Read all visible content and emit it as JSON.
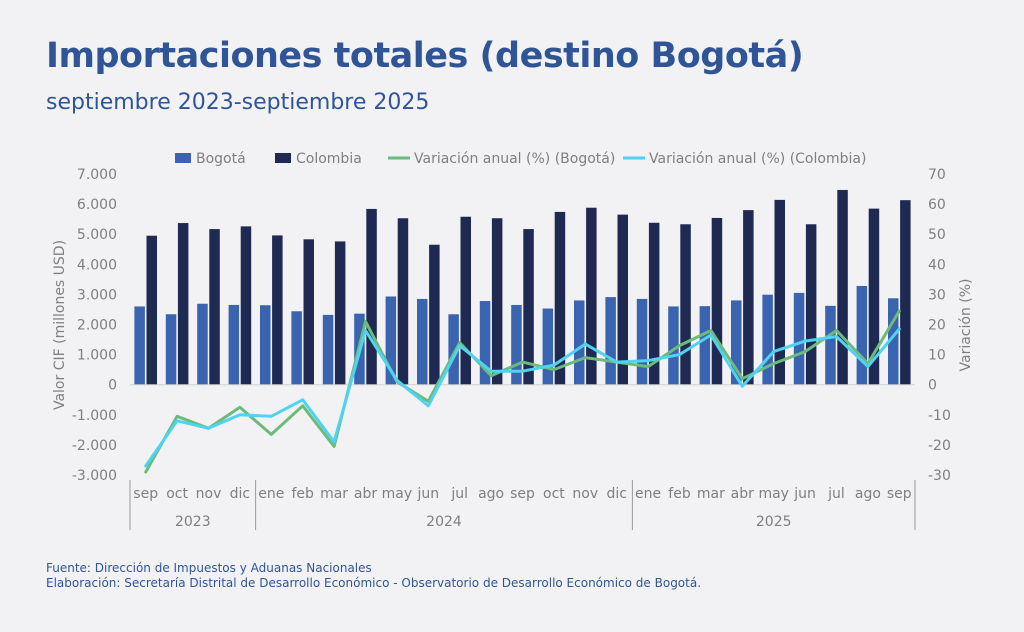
{
  "title": "Importaciones totales (destino Bogotá)",
  "subtitle": "septiembre 2023-septiembre 2025",
  "footer": {
    "source": "Fuente: Dirección de Impuestos y Aduanas Nacionales",
    "elaboration": "Elaboración: Secretaría Distrital de Desarrollo Económico - Observatorio de Desarrollo Económico de Bogotá."
  },
  "colors": {
    "bogota_bar": "#3a63b0",
    "colombia_bar": "#1f2a52",
    "var_bogota": "#6dbb7b",
    "var_colombia": "#4fd3f2",
    "axis_text": "#7f7f7f",
    "title": "#2f5597"
  },
  "chart_data": {
    "type": "bar",
    "categories": [
      "sep",
      "oct",
      "nov",
      "dic",
      "ene",
      "feb",
      "mar",
      "abr",
      "may",
      "jun",
      "jul",
      "ago",
      "sep",
      "oct",
      "nov",
      "dic",
      "ene",
      "feb",
      "mar",
      "abr",
      "may",
      "jun",
      "jul",
      "ago",
      "sep"
    ],
    "year_groups": [
      {
        "label": "2023",
        "count": 4
      },
      {
        "label": "2024",
        "count": 12
      },
      {
        "label": "2025",
        "count": 9
      }
    ],
    "series": [
      {
        "name": "Bogotá",
        "type": "bar",
        "axis": "left",
        "values": [
          2600,
          2340,
          2690,
          2650,
          2640,
          2440,
          2320,
          2360,
          2930,
          2850,
          2340,
          2780,
          2650,
          2530,
          2800,
          2910,
          2850,
          2600,
          2610,
          2800,
          2990,
          3050,
          2620,
          3280,
          2870
        ]
      },
      {
        "name": "Colombia",
        "type": "bar",
        "axis": "left",
        "values": [
          4950,
          5370,
          5170,
          5260,
          4960,
          4830,
          4760,
          5840,
          5530,
          4650,
          5580,
          5530,
          5170,
          5740,
          5880,
          5650,
          5380,
          5330,
          5540,
          5800,
          6140,
          5330,
          6470,
          5850,
          6130
        ]
      },
      {
        "name": "Variación anual (%) (Bogotá)",
        "type": "line",
        "axis": "right",
        "values": [
          -29,
          -10.5,
          -14.5,
          -7.5,
          -16.5,
          -7,
          -20.5,
          21,
          1,
          -5.5,
          14,
          3,
          7.5,
          5,
          9,
          7.5,
          6,
          13,
          18,
          2,
          7,
          11,
          18,
          7,
          24.5
        ]
      },
      {
        "name": "Variación anual (%) (Colombia)",
        "type": "line",
        "axis": "right",
        "values": [
          -27,
          -12,
          -14.5,
          -10,
          -10.5,
          -5,
          -19,
          18,
          1.5,
          -7,
          13,
          4.5,
          4.5,
          6.5,
          13.5,
          7.5,
          8,
          10,
          16.5,
          -0.5,
          11,
          14.5,
          16,
          6,
          18.5
        ]
      }
    ],
    "yaxis_left": {
      "label": "Valor CIF (millones USD)",
      "min": -3000,
      "max": 7000,
      "step": 1000,
      "tick_labels": [
        "-3.000",
        "-2.000",
        "-1.000",
        "0",
        "1.000",
        "2.000",
        "3.000",
        "4.000",
        "5.000",
        "6.000",
        "7.000"
      ]
    },
    "yaxis_right": {
      "label": "Variación (%)",
      "min": -30,
      "max": 70,
      "step": 10,
      "tick_labels": [
        "-30",
        "-20",
        "-10",
        "0",
        "10",
        "20",
        "30",
        "40",
        "50",
        "60",
        "70"
      ]
    },
    "legend_position": "top",
    "grid": false
  }
}
